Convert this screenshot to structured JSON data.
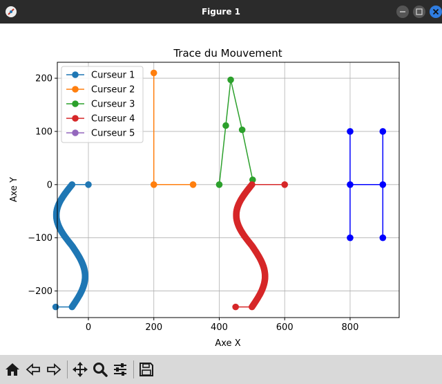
{
  "window": {
    "title": "Figure 1",
    "icons": [
      "matplotlib-icon",
      "minimize-icon",
      "maximize-icon",
      "close-icon"
    ]
  },
  "toolbar": {
    "buttons": [
      {
        "name": "home-icon",
        "tooltip": "Home"
      },
      {
        "name": "back-icon",
        "tooltip": "Back"
      },
      {
        "name": "forward-icon",
        "tooltip": "Forward"
      },
      {
        "name": "pan-icon",
        "tooltip": "Pan"
      },
      {
        "name": "zoom-icon",
        "tooltip": "Zoom"
      },
      {
        "name": "configure-subplots-icon",
        "tooltip": "Subplots"
      },
      {
        "name": "save-icon",
        "tooltip": "Save"
      }
    ]
  },
  "chart_data": {
    "type": "line",
    "title": "Trace du Mouvement",
    "xlabel": "Axe X",
    "ylabel": "Axe Y",
    "xlim": [
      -95,
      950
    ],
    "ylim": [
      -250,
      230
    ],
    "xticks": [
      0,
      200,
      400,
      600,
      800
    ],
    "xtick_labels": [
      "0",
      "200",
      "400",
      "600",
      "800"
    ],
    "yticks": [
      200,
      100,
      0,
      -100,
      -200
    ],
    "ytick_labels": [
      "200",
      "100",
      "0",
      "−100",
      "−200"
    ],
    "grid": true,
    "legend_position": "top-left",
    "series": [
      {
        "name": "Curseur 1",
        "color": "#1f77b4",
        "shape": "S",
        "x_offset": 0,
        "points": [
          [
            0,
            0
          ],
          [
            -50,
            0
          ],
          [
            -100,
            -230
          ],
          [
            -50,
            -230
          ]
        ]
      },
      {
        "name": "Curseur 2",
        "color": "#ff7f0e",
        "points": [
          [
            200,
            210
          ],
          [
            200,
            0
          ],
          [
            320,
            0
          ]
        ]
      },
      {
        "name": "Curseur 3",
        "color": "#2ca02c",
        "points": [
          [
            400,
            0
          ],
          [
            420,
            111
          ],
          [
            435,
            197
          ],
          [
            470,
            103
          ],
          [
            502,
            9
          ]
        ]
      },
      {
        "name": "Curseur 4",
        "color": "#d62728",
        "shape": "S",
        "x_offset": 550,
        "points": [
          [
            600,
            0
          ],
          [
            550,
            0
          ],
          [
            500,
            -230
          ],
          [
            550,
            -230
          ]
        ]
      },
      {
        "name": "Curseur 5",
        "color": "#9467bd",
        "points": []
      }
    ],
    "extra_series": [
      {
        "color": "#0000ff",
        "points": [
          [
            800,
            100
          ],
          [
            800,
            -100
          ]
        ]
      },
      {
        "color": "#0000ff",
        "points": [
          [
            900,
            100
          ],
          [
            900,
            -100
          ]
        ]
      },
      {
        "color": "#0000ff",
        "points": [
          [
            800,
            0
          ],
          [
            900,
            0
          ]
        ]
      }
    ]
  }
}
